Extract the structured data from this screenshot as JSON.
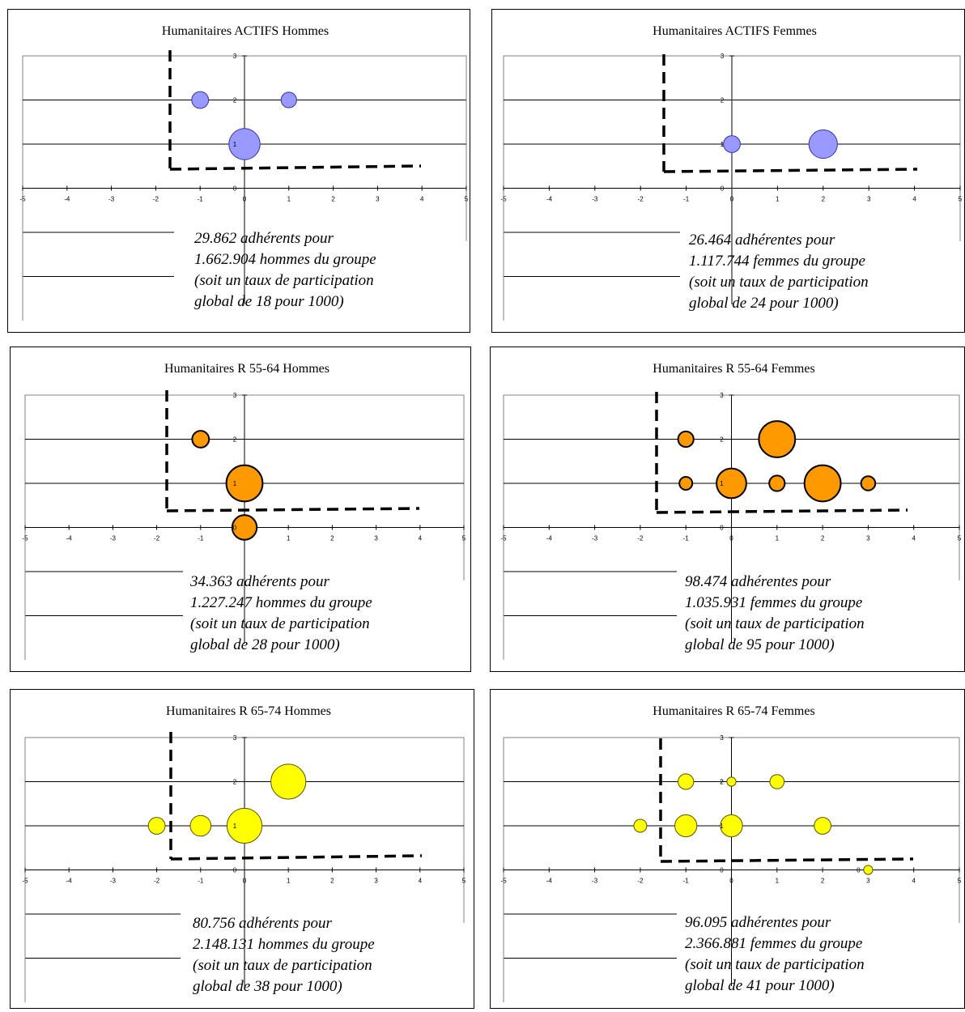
{
  "chart_data": [
    {
      "type": "bubble",
      "title": "Humanitaires ACTIFS Hommes",
      "xlim": [
        -5,
        5
      ],
      "ylim": [
        0,
        3
      ],
      "x_ticks": [
        -5,
        -4,
        -3,
        -2,
        -1,
        0,
        1,
        2,
        3,
        4,
        5
      ],
      "y_ticks": [
        0,
        1,
        2,
        3
      ],
      "color": "#9999FF",
      "stroke": "#3333aa",
      "points": [
        {
          "x": -1,
          "y": 2,
          "size": 0.65
        },
        {
          "x": 1,
          "y": 2,
          "size": 0.6
        },
        {
          "x": 0,
          "y": 1,
          "size": 1.2,
          "label": "1"
        }
      ],
      "note": [
        "29.862 adhérents pour",
        "1.662.904 hommes du groupe",
        "(soit un taux de participation",
        "global de 18 pour 1000)"
      ]
    },
    {
      "type": "bubble",
      "title": "Humanitaires ACTIFS Femmes",
      "xlim": [
        -5,
        5
      ],
      "ylim": [
        0,
        3
      ],
      "x_ticks": [
        -5,
        -4,
        -3,
        -2,
        -1,
        0,
        1,
        2,
        3,
        4,
        5
      ],
      "y_ticks": [
        0,
        1,
        2,
        3
      ],
      "color": "#9999FF",
      "stroke": "#3333aa",
      "points": [
        {
          "x": 0,
          "y": 1,
          "size": 0.65,
          "label": "1"
        },
        {
          "x": 2,
          "y": 1,
          "size": 1.1
        }
      ],
      "note": [
        "26.464 adhérentes pour",
        "1.117.744 femmes du groupe",
        "(soit un taux de participation",
        "global de 24 pour 1000)"
      ]
    },
    {
      "type": "bubble",
      "title": "Humanitaires R 55-64  Hommes",
      "xlim": [
        -5,
        5
      ],
      "ylim": [
        0,
        3
      ],
      "x_ticks": [
        -5,
        -4,
        -3,
        -2,
        -1,
        0,
        1,
        2,
        3,
        4,
        5
      ],
      "y_ticks": [
        0,
        1,
        2,
        3
      ],
      "color": "#FF9900",
      "stroke": "#000000",
      "points": [
        {
          "x": -1,
          "y": 2,
          "size": 0.65
        },
        {
          "x": 0,
          "y": 1,
          "size": 1.4,
          "label": "1"
        },
        {
          "x": 0,
          "y": 0,
          "size": 0.95,
          "label": "0"
        }
      ],
      "note": [
        "34.363 adhérents pour",
        "1.227.247 hommes du groupe",
        "(soit un taux de participation",
        "global de 28 pour 1000)"
      ]
    },
    {
      "type": "bubble",
      "title": "Humanitaires R 55-64  Femmes",
      "xlim": [
        -5,
        5
      ],
      "ylim": [
        0,
        3
      ],
      "x_ticks": [
        -5,
        -4,
        -3,
        -2,
        -1,
        0,
        1,
        2,
        3,
        4,
        5
      ],
      "y_ticks": [
        0,
        1,
        2,
        3
      ],
      "color": "#FF9900",
      "stroke": "#000000",
      "points": [
        {
          "x": -1,
          "y": 2,
          "size": 0.6
        },
        {
          "x": 1,
          "y": 2,
          "size": 1.4
        },
        {
          "x": -1,
          "y": 1,
          "size": 0.5
        },
        {
          "x": 0,
          "y": 1,
          "size": 1.15,
          "label": "1"
        },
        {
          "x": 1,
          "y": 1,
          "size": 0.6
        },
        {
          "x": 2,
          "y": 1,
          "size": 1.4
        },
        {
          "x": 3,
          "y": 1,
          "size": 0.55
        }
      ],
      "note": [
        "98.474 adhérentes pour",
        "1.035.931 femmes du groupe",
        "(soit un taux de participation",
        "global de 95 pour 1000)"
      ]
    },
    {
      "type": "bubble",
      "title": "Humanitaires R 65-74  Hommes",
      "xlim": [
        -5,
        5
      ],
      "ylim": [
        0,
        3
      ],
      "x_ticks": [
        -5,
        -4,
        -3,
        -2,
        -1,
        0,
        1,
        2,
        3,
        4,
        5
      ],
      "y_ticks": [
        0,
        1,
        2,
        3
      ],
      "color": "#FFFF00",
      "stroke": "#555500",
      "points": [
        {
          "x": 1,
          "y": 2,
          "size": 1.35
        },
        {
          "x": -2,
          "y": 1,
          "size": 0.65
        },
        {
          "x": -1,
          "y": 1,
          "size": 0.8
        },
        {
          "x": 0,
          "y": 1,
          "size": 1.35,
          "label": "1"
        }
      ],
      "note": [
        "80.756 adhérents pour",
        "2.148.131 hommes du groupe",
        "(soit un taux de participation",
        "global de 38 pour 1000)"
      ]
    },
    {
      "type": "bubble",
      "title": "Humanitaires R 65-74  Femmes",
      "xlim": [
        -5,
        5
      ],
      "ylim": [
        0,
        3
      ],
      "x_ticks": [
        -5,
        -4,
        -3,
        -2,
        -1,
        0,
        1,
        2,
        3,
        4,
        5
      ],
      "y_ticks": [
        0,
        1,
        2,
        3
      ],
      "color": "#FFFF00",
      "stroke": "#555500",
      "points": [
        {
          "x": -1,
          "y": 2,
          "size": 0.6
        },
        {
          "x": 0,
          "y": 2,
          "size": 0.35,
          "label": "2"
        },
        {
          "x": 1,
          "y": 2,
          "size": 0.55
        },
        {
          "x": -2,
          "y": 1,
          "size": 0.5
        },
        {
          "x": -1,
          "y": 1,
          "size": 0.85
        },
        {
          "x": 0,
          "y": 1,
          "size": 0.85,
          "label": "1"
        },
        {
          "x": 2,
          "y": 1,
          "size": 0.65
        },
        {
          "x": 3,
          "y": 0,
          "size": 0.35,
          "label": "0"
        }
      ],
      "note": [
        "96.095 adhérentes pour",
        "2.366.881 femmes du groupe",
        "(soit un taux de participation",
        "global de 41 pour 1000)"
      ]
    }
  ]
}
